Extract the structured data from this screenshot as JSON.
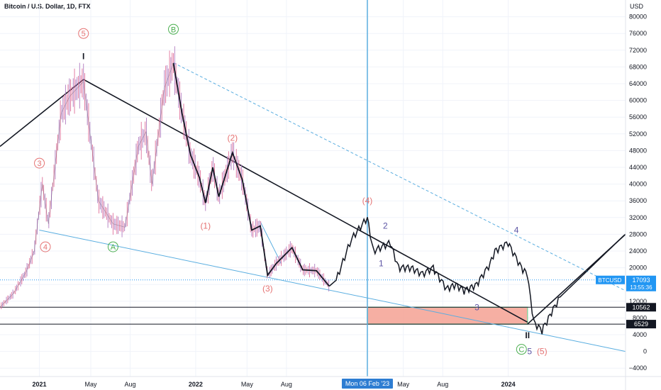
{
  "header": {
    "symbol_title": "Bitcoin / U.S. Dollar, 1D, FTX"
  },
  "colors": {
    "wave_red": "#e57373",
    "wave_green": "#4caf50",
    "wave_purple": "#5c54a4",
    "trendline_blue": "#5aaee0",
    "target_zone": "#f4a193",
    "price_tag": "#2196f3",
    "candle_up": "#b07abf",
    "candle_down": "#e0709a"
  },
  "chart_data": {
    "type": "line",
    "title": "Bitcoin / U.S. Dollar, 1D, FTX",
    "price_axis": {
      "unit": "USD",
      "ylim": [
        -6000,
        84000
      ],
      "ticks": [
        -4000,
        0,
        4000,
        8000,
        12000,
        16000,
        20000,
        24000,
        28000,
        32000,
        36000,
        40000,
        44000,
        48000,
        52000,
        56000,
        60000,
        64000,
        68000,
        72000,
        76000,
        80000
      ],
      "tick_labels": [
        "−4000",
        "0",
        "4000",
        "8000",
        "12000",
        "16000",
        "20000",
        "24000",
        "28000",
        "32000",
        "36000",
        "40000",
        "44000",
        "48000",
        "52000",
        "56000",
        "60000",
        "64000",
        "68000",
        "72000",
        "76000",
        "80000"
      ]
    },
    "time_axis": {
      "xlim": [
        "2020-10-01",
        "2024-10-01"
      ],
      "ticks": [
        {
          "date": "2021-01-01",
          "label": "2021",
          "bold": true
        },
        {
          "date": "2021-05-01",
          "label": "May",
          "bold": false
        },
        {
          "date": "2021-08-01",
          "label": "Aug",
          "bold": false
        },
        {
          "date": "2022-01-01",
          "label": "2022",
          "bold": true
        },
        {
          "date": "2022-05-01",
          "label": "May",
          "bold": false
        },
        {
          "date": "2022-08-01",
          "label": "Aug",
          "bold": false
        },
        {
          "date": "2023-05-01",
          "label": "May",
          "bold": false
        },
        {
          "date": "2023-08-01",
          "label": "Aug",
          "bold": false
        },
        {
          "date": "2024-01-01",
          "label": "2024",
          "bold": true
        }
      ],
      "crosshair": {
        "date": "2023-02-06",
        "label": "Mon 06 Feb '23"
      }
    },
    "price_history": {
      "dates": [
        "2020-10-01",
        "2020-11-01",
        "2020-12-01",
        "2020-12-20",
        "2021-01-08",
        "2021-01-22",
        "2021-02-21",
        "2021-03-13",
        "2021-04-14",
        "2021-05-19",
        "2021-06-22",
        "2021-07-20",
        "2021-08-20",
        "2021-09-07",
        "2021-09-21",
        "2021-10-20",
        "2021-11-10",
        "2021-11-30",
        "2021-12-20",
        "2022-01-10",
        "2022-01-24",
        "2022-02-10",
        "2022-02-24",
        "2022-03-28",
        "2022-04-20",
        "2022-05-12",
        "2022-06-01",
        "2022-06-18",
        "2022-07-08",
        "2022-08-14",
        "2022-09-08",
        "2022-10-10",
        "2022-11-09"
      ],
      "close": [
        10600,
        13800,
        19000,
        24000,
        40000,
        30500,
        57000,
        61000,
        64500,
        36000,
        30500,
        29700,
        49000,
        52500,
        40000,
        63000,
        68900,
        57000,
        47000,
        41500,
        35500,
        44000,
        37000,
        47500,
        41000,
        29000,
        30000,
        18200,
        21000,
        24800,
        19500,
        19300,
        15600
      ]
    },
    "projection": {
      "dates": [
        "2022-11-09",
        "2022-11-25",
        "2023-01-01",
        "2023-02-06",
        "2023-02-20",
        "2023-04-01",
        "2023-04-20",
        "2023-05-20",
        "2023-06-15",
        "2023-07-10",
        "2023-08-10",
        "2023-09-01",
        "2023-09-20",
        "2023-10-20",
        "2023-11-20",
        "2023-12-01",
        "2024-01-01",
        "2024-02-01",
        "2024-02-15",
        "2024-03-01",
        "2024-03-20",
        "2024-05-01",
        "2024-10-01"
      ],
      "values": [
        15600,
        17000,
        27000,
        32000,
        24000,
        26000,
        20000,
        20000,
        18500,
        20000,
        15000,
        16000,
        14500,
        16000,
        21000,
        24000,
        26000,
        20000,
        18500,
        7000,
        5000,
        13000,
        28000
      ]
    },
    "current_price": {
      "symbol": "BTCUSD",
      "value": 17093,
      "label": "17093",
      "countdown": "13:55:36"
    },
    "horizontal_levels": [
      {
        "value": 10562,
        "label": "10562"
      },
      {
        "value": 6529,
        "label": "6529"
      }
    ],
    "target_zone": {
      "x_start": "2023-02-06",
      "x_end": "2024-02-15",
      "y_low": 6529,
      "y_high": 10562
    },
    "trendlines": [
      {
        "kind": "black",
        "points": [
          [
            "2020-10-01",
            49000
          ],
          [
            "2021-04-14",
            65000
          ],
          [
            "2024-02-15",
            7000
          ]
        ]
      },
      {
        "kind": "black",
        "points": [
          [
            "2024-02-15",
            6529
          ],
          [
            "2024-10-01",
            28000
          ]
        ]
      },
      {
        "kind": "blue",
        "points": [
          [
            "2021-01-01",
            29000
          ],
          [
            "2024-10-01",
            0
          ]
        ]
      },
      {
        "kind": "blue_dashed",
        "points": [
          [
            "2021-11-10",
            69000
          ],
          [
            "2024-10-01",
            14500
          ]
        ]
      },
      {
        "kind": "blue",
        "points": [
          [
            "2022-06-01",
            31000
          ],
          [
            "2022-07-20",
            21000
          ]
        ]
      }
    ],
    "wave_labels": [
      {
        "text": "5",
        "style": "circle",
        "color": "red",
        "date": "2021-04-14",
        "price": 76000
      },
      {
        "text": "I",
        "style": "plain",
        "color": "black",
        "date": "2021-04-14",
        "price": 70500
      },
      {
        "text": "B",
        "style": "circle",
        "color": "green",
        "date": "2021-11-10",
        "price": 77000
      },
      {
        "text": "3",
        "style": "circle",
        "color": "red",
        "date": "2021-01-01",
        "price": 45000
      },
      {
        "text": "4",
        "style": "circle",
        "color": "red",
        "date": "2021-01-15",
        "price": 25000
      },
      {
        "text": "A",
        "style": "circle",
        "color": "green",
        "date": "2021-06-22",
        "price": 25000
      },
      {
        "text": "(2)",
        "style": "paren",
        "color": "red",
        "date": "2022-03-28",
        "price": 51000
      },
      {
        "text": "(1)",
        "style": "paren",
        "color": "red",
        "date": "2022-01-24",
        "price": 30000
      },
      {
        "text": "(3)",
        "style": "paren",
        "color": "red",
        "date": "2022-06-18",
        "price": 15000
      },
      {
        "text": "(4)",
        "style": "paren",
        "color": "red",
        "date": "2023-02-06",
        "price": 36000
      },
      {
        "text": "(5)",
        "style": "paren",
        "color": "red",
        "date": "2024-03-20",
        "price": 0
      },
      {
        "text": "2",
        "style": "plain",
        "color": "purple",
        "date": "2023-03-20",
        "price": 30000
      },
      {
        "text": "1",
        "style": "plain",
        "color": "purple",
        "date": "2023-03-10",
        "price": 21000
      },
      {
        "text": "3",
        "style": "plain",
        "color": "purple",
        "date": "2023-10-20",
        "price": 10500
      },
      {
        "text": "4",
        "style": "plain",
        "color": "purple",
        "date": "2024-01-20",
        "price": 29000
      },
      {
        "text": "5",
        "style": "plain",
        "color": "purple",
        "date": "2024-02-20",
        "price": 0
      },
      {
        "text": "C",
        "style": "circle",
        "color": "green",
        "date": "2024-02-01",
        "price": 500
      },
      {
        "text": "II",
        "style": "plain",
        "color": "black",
        "date": "2024-02-15",
        "price": 3800
      }
    ]
  }
}
